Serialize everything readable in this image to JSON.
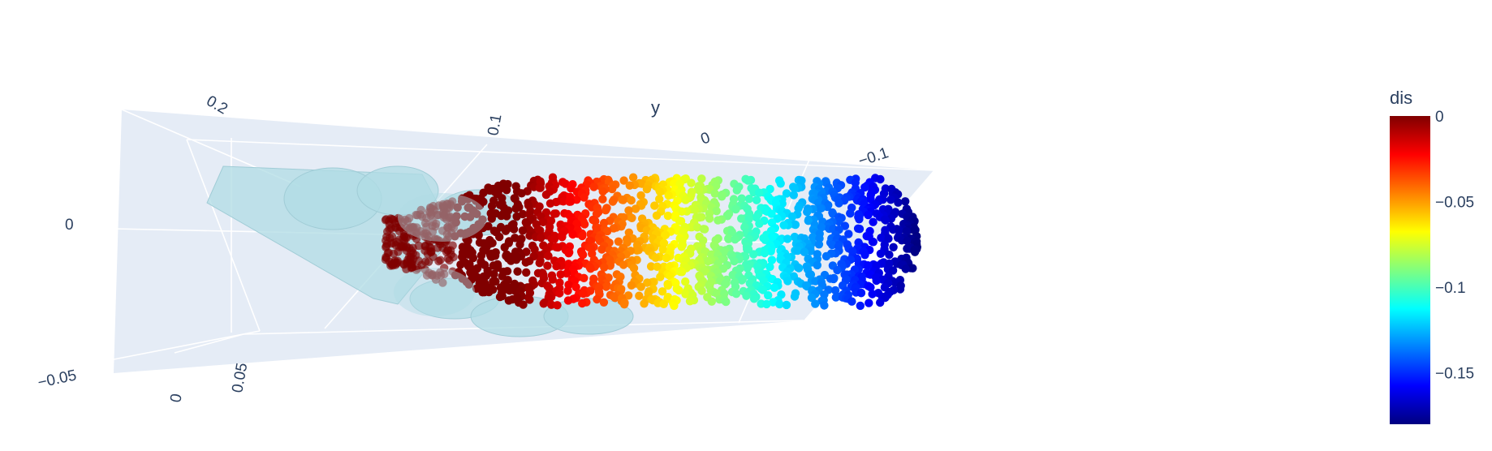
{
  "chart_data": {
    "type": "scatter",
    "subtype": "scatter3d",
    "title": "",
    "axes": {
      "y": {
        "title": "y",
        "ticks": [
          "0.2",
          "0.1",
          "0",
          "−0.1"
        ],
        "range": [
          -0.13,
          0.27
        ]
      },
      "x": {
        "title": "",
        "ticks": [
          "0",
          "0.05"
        ],
        "range": [
          -0.02,
          0.08
        ]
      },
      "z": {
        "title": "",
        "ticks": [
          "0",
          "−0.05"
        ],
        "range": [
          -0.07,
          0.02
        ]
      }
    },
    "colorbar": {
      "title": "dis",
      "colorscale": "Jet",
      "cmin": -0.18,
      "cmax": 0,
      "ticks": [
        "0",
        "−0.05",
        "−0.1",
        "−0.15"
      ],
      "tick_values": [
        0,
        -0.05,
        -0.1,
        -0.15
      ]
    },
    "series": [
      {
        "type": "scatter3d",
        "marker_color_by": "dis",
        "description_of_values": "dis ranges from about 0 near y=0.15 down to about -0.18 near y=-0.1 along the object length"
      },
      {
        "type": "mesh3d",
        "color": "#b0dce4",
        "opacity": 0.75
      }
    ],
    "grid": true,
    "background_color": "#e5ecf6"
  }
}
